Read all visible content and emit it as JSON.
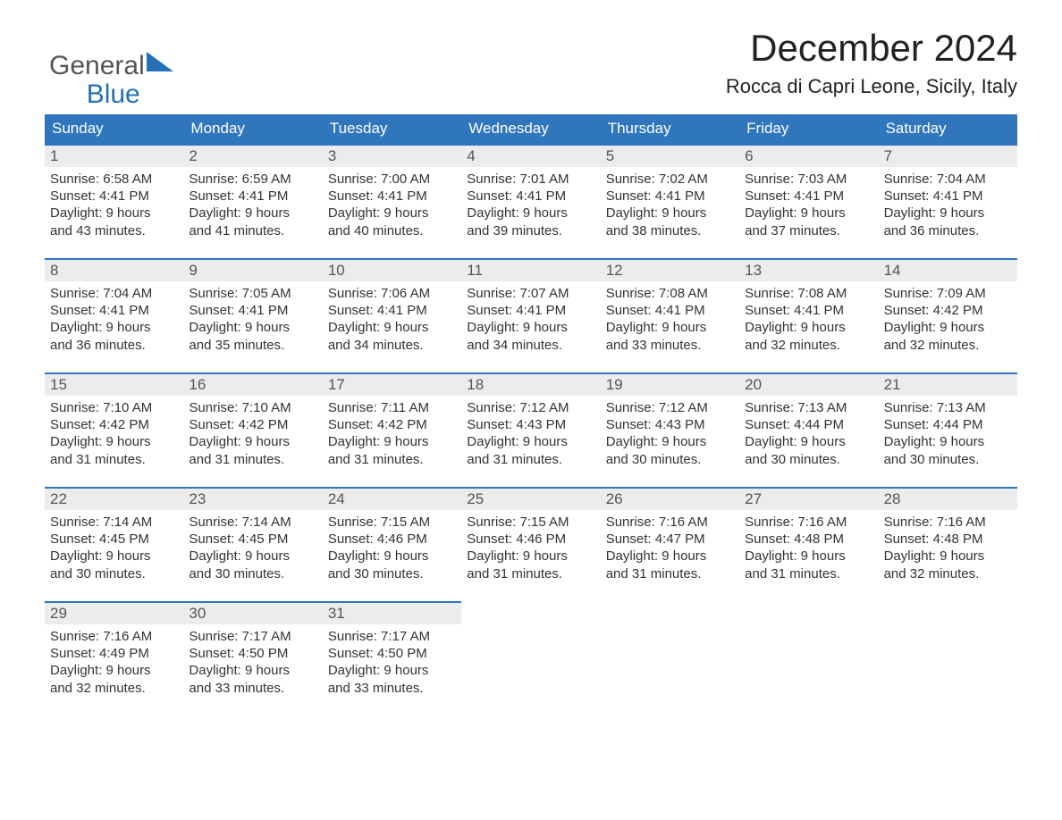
{
  "logo": {
    "line1": "General",
    "line2": "Blue"
  },
  "header": {
    "month_title": "December 2024",
    "location": "Rocca di Capri Leone, Sicily, Italy"
  },
  "colors": {
    "header_bg": "#2f76bd",
    "header_fg": "#ffffff",
    "daynum_bg": "#ececec",
    "daynum_border": "#2f76bd",
    "text": "#333333",
    "background": "#ffffff"
  },
  "fonts": {
    "title_size_pt": 32,
    "location_size_pt": 17,
    "header_size_pt": 13,
    "body_size_pt": 11
  },
  "day_names": [
    "Sunday",
    "Monday",
    "Tuesday",
    "Wednesday",
    "Thursday",
    "Friday",
    "Saturday"
  ],
  "labels": {
    "sunrise": "Sunrise:",
    "sunset": "Sunset:",
    "daylight": "Daylight:",
    "hours_word": "hours",
    "and_word": "and",
    "minutes_word": "minutes."
  },
  "days": [
    {
      "n": 1,
      "sunrise": "6:58 AM",
      "sunset": "4:41 PM",
      "dl_h": 9,
      "dl_m": 43
    },
    {
      "n": 2,
      "sunrise": "6:59 AM",
      "sunset": "4:41 PM",
      "dl_h": 9,
      "dl_m": 41
    },
    {
      "n": 3,
      "sunrise": "7:00 AM",
      "sunset": "4:41 PM",
      "dl_h": 9,
      "dl_m": 40
    },
    {
      "n": 4,
      "sunrise": "7:01 AM",
      "sunset": "4:41 PM",
      "dl_h": 9,
      "dl_m": 39
    },
    {
      "n": 5,
      "sunrise": "7:02 AM",
      "sunset": "4:41 PM",
      "dl_h": 9,
      "dl_m": 38
    },
    {
      "n": 6,
      "sunrise": "7:03 AM",
      "sunset": "4:41 PM",
      "dl_h": 9,
      "dl_m": 37
    },
    {
      "n": 7,
      "sunrise": "7:04 AM",
      "sunset": "4:41 PM",
      "dl_h": 9,
      "dl_m": 36
    },
    {
      "n": 8,
      "sunrise": "7:04 AM",
      "sunset": "4:41 PM",
      "dl_h": 9,
      "dl_m": 36
    },
    {
      "n": 9,
      "sunrise": "7:05 AM",
      "sunset": "4:41 PM",
      "dl_h": 9,
      "dl_m": 35
    },
    {
      "n": 10,
      "sunrise": "7:06 AM",
      "sunset": "4:41 PM",
      "dl_h": 9,
      "dl_m": 34
    },
    {
      "n": 11,
      "sunrise": "7:07 AM",
      "sunset": "4:41 PM",
      "dl_h": 9,
      "dl_m": 34
    },
    {
      "n": 12,
      "sunrise": "7:08 AM",
      "sunset": "4:41 PM",
      "dl_h": 9,
      "dl_m": 33
    },
    {
      "n": 13,
      "sunrise": "7:08 AM",
      "sunset": "4:41 PM",
      "dl_h": 9,
      "dl_m": 32
    },
    {
      "n": 14,
      "sunrise": "7:09 AM",
      "sunset": "4:42 PM",
      "dl_h": 9,
      "dl_m": 32
    },
    {
      "n": 15,
      "sunrise": "7:10 AM",
      "sunset": "4:42 PM",
      "dl_h": 9,
      "dl_m": 31
    },
    {
      "n": 16,
      "sunrise": "7:10 AM",
      "sunset": "4:42 PM",
      "dl_h": 9,
      "dl_m": 31
    },
    {
      "n": 17,
      "sunrise": "7:11 AM",
      "sunset": "4:42 PM",
      "dl_h": 9,
      "dl_m": 31
    },
    {
      "n": 18,
      "sunrise": "7:12 AM",
      "sunset": "4:43 PM",
      "dl_h": 9,
      "dl_m": 31
    },
    {
      "n": 19,
      "sunrise": "7:12 AM",
      "sunset": "4:43 PM",
      "dl_h": 9,
      "dl_m": 30
    },
    {
      "n": 20,
      "sunrise": "7:13 AM",
      "sunset": "4:44 PM",
      "dl_h": 9,
      "dl_m": 30
    },
    {
      "n": 21,
      "sunrise": "7:13 AM",
      "sunset": "4:44 PM",
      "dl_h": 9,
      "dl_m": 30
    },
    {
      "n": 22,
      "sunrise": "7:14 AM",
      "sunset": "4:45 PM",
      "dl_h": 9,
      "dl_m": 30
    },
    {
      "n": 23,
      "sunrise": "7:14 AM",
      "sunset": "4:45 PM",
      "dl_h": 9,
      "dl_m": 30
    },
    {
      "n": 24,
      "sunrise": "7:15 AM",
      "sunset": "4:46 PM",
      "dl_h": 9,
      "dl_m": 30
    },
    {
      "n": 25,
      "sunrise": "7:15 AM",
      "sunset": "4:46 PM",
      "dl_h": 9,
      "dl_m": 31
    },
    {
      "n": 26,
      "sunrise": "7:16 AM",
      "sunset": "4:47 PM",
      "dl_h": 9,
      "dl_m": 31
    },
    {
      "n": 27,
      "sunrise": "7:16 AM",
      "sunset": "4:48 PM",
      "dl_h": 9,
      "dl_m": 31
    },
    {
      "n": 28,
      "sunrise": "7:16 AM",
      "sunset": "4:48 PM",
      "dl_h": 9,
      "dl_m": 32
    },
    {
      "n": 29,
      "sunrise": "7:16 AM",
      "sunset": "4:49 PM",
      "dl_h": 9,
      "dl_m": 32
    },
    {
      "n": 30,
      "sunrise": "7:17 AM",
      "sunset": "4:50 PM",
      "dl_h": 9,
      "dl_m": 33
    },
    {
      "n": 31,
      "sunrise": "7:17 AM",
      "sunset": "4:50 PM",
      "dl_h": 9,
      "dl_m": 33
    }
  ],
  "layout": {
    "start_weekday_index": 0,
    "columns": 7,
    "rows": 5
  }
}
